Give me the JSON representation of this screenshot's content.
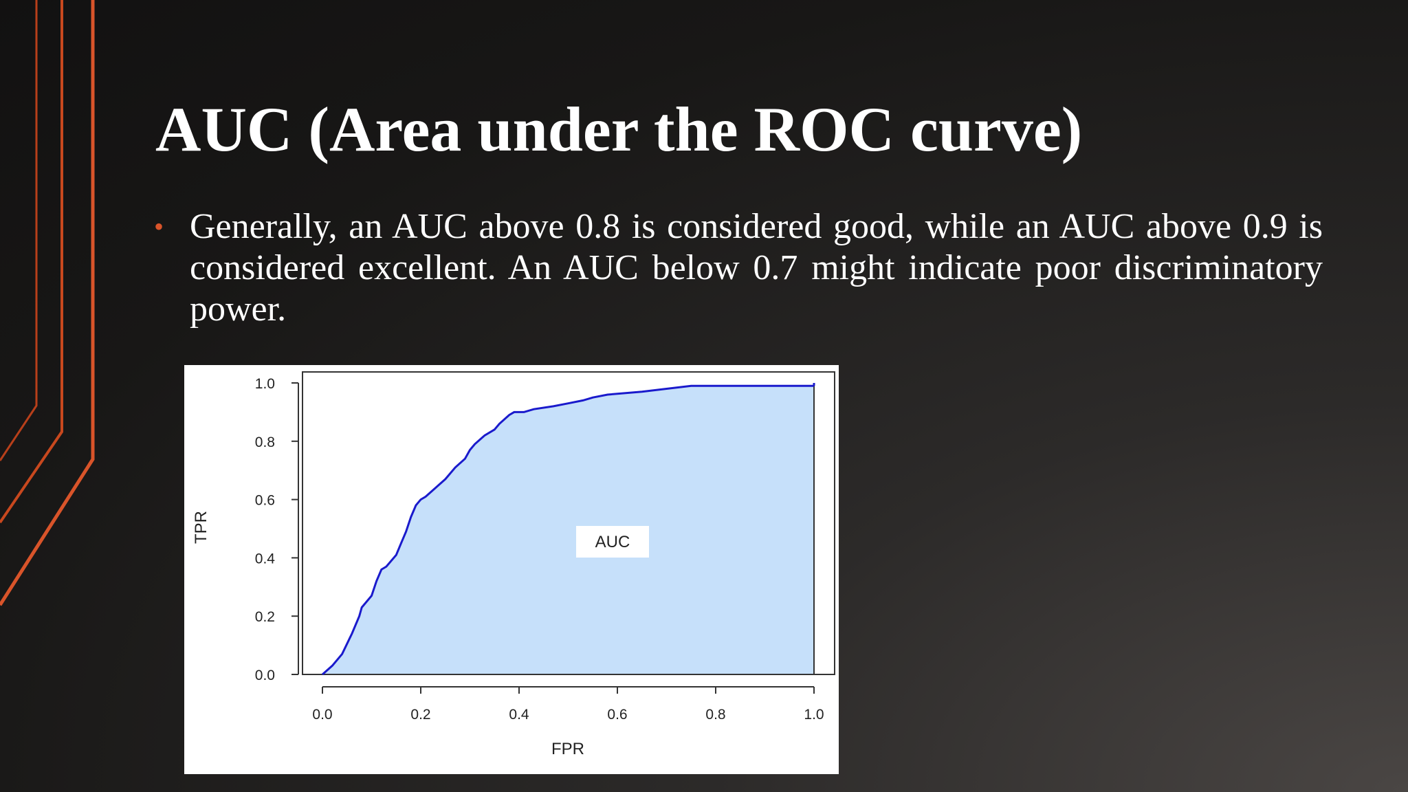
{
  "slide": {
    "title": "AUC (Area under the ROC curve)",
    "bullet": "Generally, an AUC above 0.8 is considered good, while an AUC above 0.9 is considered excellent. An AUC below 0.7 might indicate poor discriminatory power.",
    "accent_color": "#d9542a"
  },
  "chart_data": {
    "type": "area",
    "title": "",
    "xlabel": "FPR",
    "ylabel": "TPR",
    "xlim": [
      0,
      1
    ],
    "ylim": [
      0,
      1
    ],
    "x_ticks": [
      "0.0",
      "0.2",
      "0.4",
      "0.6",
      "0.8",
      "1.0"
    ],
    "y_ticks": [
      "0.0",
      "0.2",
      "0.4",
      "0.6",
      "0.8",
      "1.0"
    ],
    "annotation": "AUC",
    "grid": false,
    "line_color": "#1a1acc",
    "fill_color": "#c6e0fa",
    "series": [
      {
        "x": [
          0.0,
          0.02,
          0.04,
          0.06,
          0.075,
          0.08,
          0.1,
          0.11,
          0.12,
          0.13,
          0.15,
          0.16,
          0.17,
          0.18,
          0.19,
          0.2,
          0.21,
          0.23,
          0.25,
          0.27,
          0.29,
          0.3,
          0.31,
          0.33,
          0.35,
          0.36,
          0.38,
          0.39,
          0.41,
          0.43,
          0.47,
          0.5,
          0.53,
          0.55,
          0.58,
          0.65,
          0.7,
          0.75,
          1.0
        ],
        "y": [
          0.0,
          0.03,
          0.07,
          0.14,
          0.2,
          0.23,
          0.27,
          0.32,
          0.36,
          0.37,
          0.41,
          0.45,
          0.49,
          0.54,
          0.58,
          0.6,
          0.61,
          0.64,
          0.67,
          0.71,
          0.74,
          0.77,
          0.79,
          0.82,
          0.84,
          0.86,
          0.89,
          0.9,
          0.9,
          0.91,
          0.92,
          0.93,
          0.94,
          0.95,
          0.96,
          0.97,
          0.98,
          0.99,
          0.99
        ]
      }
    ]
  }
}
